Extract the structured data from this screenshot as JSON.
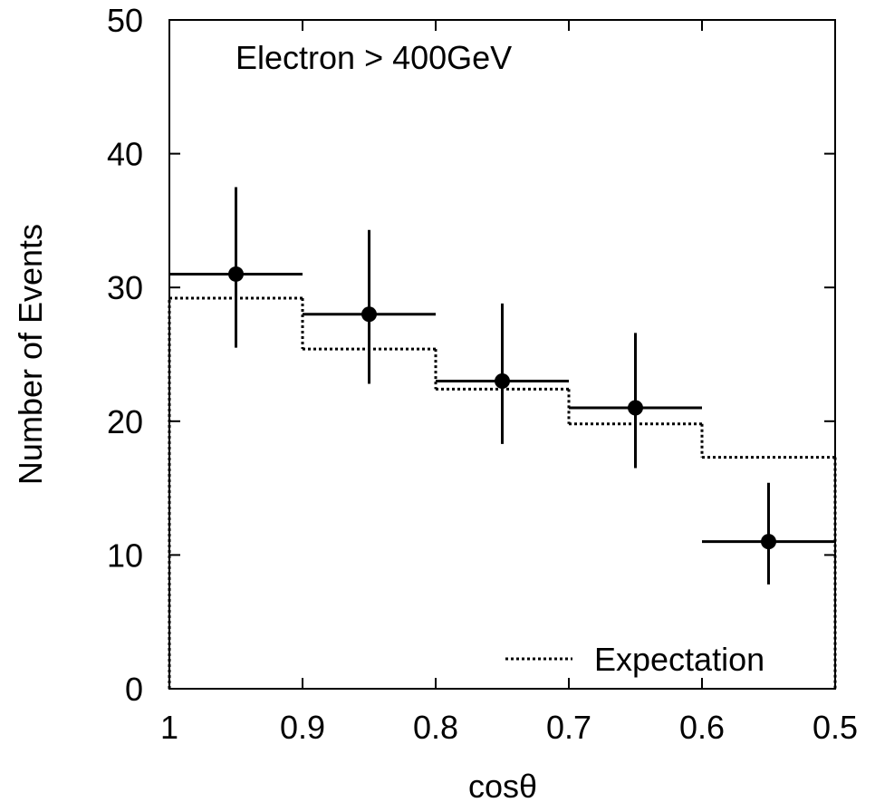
{
  "chart_data": {
    "type": "scatter",
    "title": "",
    "annotation": "Electron > 400GeV",
    "xlabel": "cosθ",
    "ylabel": "Number of Events",
    "xlim": [
      1,
      0.5
    ],
    "x_reversed": true,
    "ylim": [
      0,
      50
    ],
    "xticks": [
      "1",
      "0.9",
      "0.8",
      "0.7",
      "0.6",
      "0.5"
    ],
    "yticks": [
      "0",
      "10",
      "20",
      "30",
      "40",
      "50"
    ],
    "grid": false,
    "legend": {
      "position": "bottom-right",
      "entries": [
        "Expectation"
      ]
    },
    "series": [
      {
        "name": "Data",
        "style": "points-with-errorbars",
        "points": [
          {
            "x_low": 1.0,
            "x_high": 0.9,
            "x": 0.95,
            "y": 31,
            "y_low": 25.5,
            "y_high": 37.5
          },
          {
            "x_low": 0.9,
            "x_high": 0.8,
            "x": 0.85,
            "y": 28,
            "y_low": 22.8,
            "y_high": 34.3
          },
          {
            "x_low": 0.8,
            "x_high": 0.7,
            "x": 0.75,
            "y": 23,
            "y_low": 18.3,
            "y_high": 28.8
          },
          {
            "x_low": 0.7,
            "x_high": 0.6,
            "x": 0.65,
            "y": 21,
            "y_low": 16.5,
            "y_high": 26.6
          },
          {
            "x_low": 0.6,
            "x_high": 0.5,
            "x": 0.55,
            "y": 11,
            "y_low": 7.8,
            "y_high": 15.4
          }
        ]
      },
      {
        "name": "Expectation",
        "style": "dotted-histogram",
        "bins": [
          {
            "x_low": 1.0,
            "x_high": 0.9,
            "y": 29.2
          },
          {
            "x_low": 0.9,
            "x_high": 0.8,
            "y": 25.4
          },
          {
            "x_low": 0.8,
            "x_high": 0.7,
            "y": 22.4
          },
          {
            "x_low": 0.7,
            "x_high": 0.6,
            "y": 19.8
          },
          {
            "x_low": 0.6,
            "x_high": 0.5,
            "y": 17.3
          }
        ]
      }
    ]
  }
}
